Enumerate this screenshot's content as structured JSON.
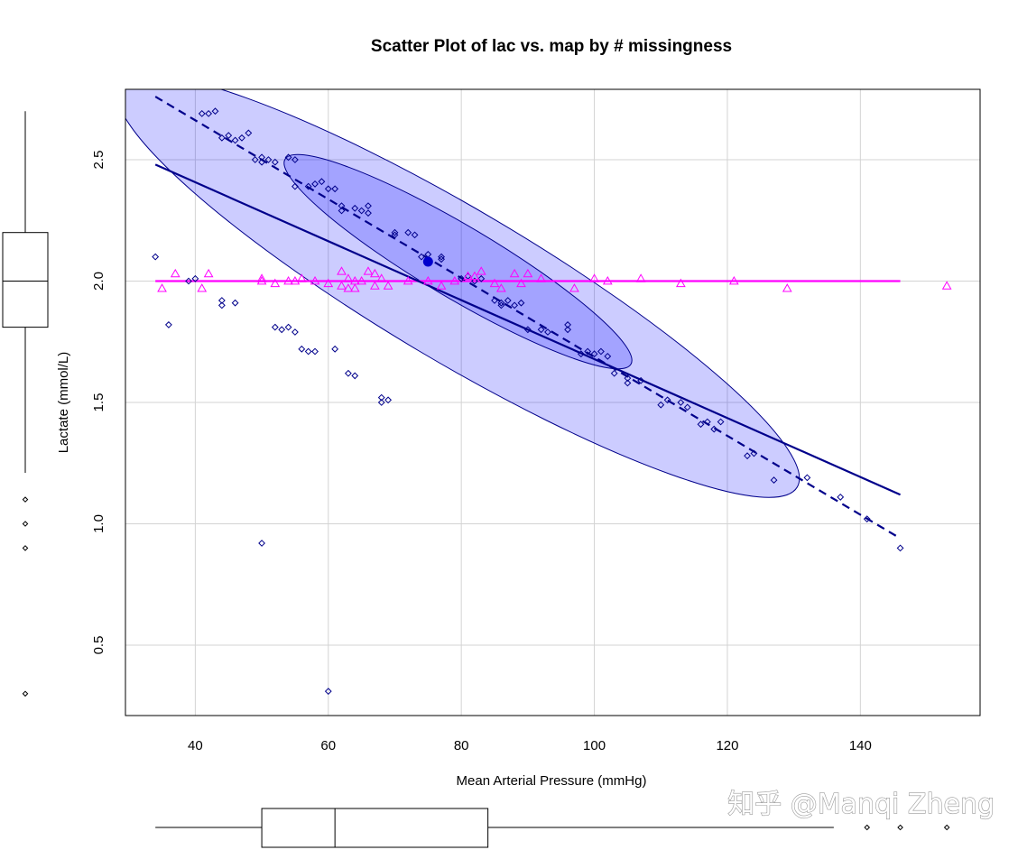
{
  "chart_data": {
    "type": "scatter",
    "title": "Scatter Plot of lac vs. map by # missingness",
    "xlabel": "Mean Arterial Pressure (mmHg)",
    "ylabel": "Lactate (mmol/L)",
    "xlim": [
      29.5,
      158
    ],
    "ylim": [
      0.21,
      2.79
    ],
    "x_ticks": [
      40,
      60,
      80,
      100,
      120,
      140
    ],
    "y_ticks": [
      0.5,
      1.0,
      1.5,
      2.0,
      2.5
    ],
    "x_tick_labels": [
      "40",
      "60",
      "80",
      "100",
      "120",
      "140"
    ],
    "y_tick_labels": [
      "0.5",
      "1.0",
      "1.5",
      "2.0",
      "2.5"
    ],
    "grid": true,
    "colors": {
      "observed": "#00008B",
      "missing": "#FF00FF",
      "ellipse_fill": "rgba(0,0,255,0.2)",
      "ellipse_stroke": "#00008B",
      "grid": "#d3d3d3"
    },
    "series": [
      {
        "marker": "diamond",
        "color": "#00008B",
        "points": [
          [
            34,
            2.1
          ],
          [
            36,
            1.82
          ],
          [
            39,
            2.0
          ],
          [
            40,
            2.01
          ],
          [
            42,
            2.69
          ],
          [
            43,
            2.7
          ],
          [
            41,
            2.69
          ],
          [
            44,
            1.92
          ],
          [
            44,
            1.9
          ],
          [
            46,
            1.91
          ],
          [
            44,
            2.59
          ],
          [
            45,
            2.6
          ],
          [
            46,
            2.58
          ],
          [
            47,
            2.59
          ],
          [
            48,
            2.61
          ],
          [
            49,
            2.5
          ],
          [
            50,
            2.51
          ],
          [
            50,
            2.49
          ],
          [
            51,
            2.5
          ],
          [
            52,
            2.49
          ],
          [
            54,
            2.51
          ],
          [
            55,
            2.5
          ],
          [
            55,
            2.39
          ],
          [
            57,
            2.39
          ],
          [
            58,
            2.4
          ],
          [
            59,
            2.41
          ],
          [
            60,
            2.38
          ],
          [
            61,
            2.38
          ],
          [
            62,
            2.29
          ],
          [
            62,
            2.31
          ],
          [
            64,
            2.3
          ],
          [
            65,
            2.29
          ],
          [
            66,
            2.31
          ],
          [
            66,
            2.28
          ],
          [
            70,
            2.2
          ],
          [
            70,
            2.19
          ],
          [
            72,
            2.2
          ],
          [
            73,
            2.19
          ],
          [
            74,
            2.1
          ],
          [
            75,
            2.11
          ],
          [
            77,
            2.1
          ],
          [
            77,
            2.09
          ],
          [
            80,
            2.01
          ],
          [
            81,
            2.02
          ],
          [
            82,
            2.0
          ],
          [
            83,
            2.01
          ],
          [
            85,
            1.92
          ],
          [
            86,
            1.9
          ],
          [
            86,
            1.91
          ],
          [
            87,
            1.92
          ],
          [
            88,
            1.9
          ],
          [
            89,
            1.91
          ],
          [
            90,
            1.8
          ],
          [
            92,
            1.8
          ],
          [
            93,
            1.79
          ],
          [
            96,
            1.82
          ],
          [
            96,
            1.8
          ],
          [
            98,
            1.7
          ],
          [
            99,
            1.71
          ],
          [
            100,
            1.7
          ],
          [
            101,
            1.71
          ],
          [
            102,
            1.69
          ],
          [
            103,
            1.62
          ],
          [
            105,
            1.6
          ],
          [
            105,
            1.58
          ],
          [
            107,
            1.59
          ],
          [
            110,
            1.49
          ],
          [
            111,
            1.51
          ],
          [
            113,
            1.5
          ],
          [
            114,
            1.48
          ],
          [
            116,
            1.41
          ],
          [
            117,
            1.42
          ],
          [
            118,
            1.39
          ],
          [
            119,
            1.42
          ],
          [
            123,
            1.28
          ],
          [
            124,
            1.29
          ],
          [
            127,
            1.18
          ],
          [
            132,
            1.19
          ],
          [
            137,
            1.11
          ],
          [
            141,
            1.02
          ],
          [
            146,
            0.9
          ],
          [
            52,
            1.81
          ],
          [
            53,
            1.8
          ],
          [
            54,
            1.81
          ],
          [
            55,
            1.79
          ],
          [
            56,
            1.72
          ],
          [
            57,
            1.71
          ],
          [
            58,
            1.71
          ],
          [
            61,
            1.72
          ],
          [
            63,
            1.62
          ],
          [
            64,
            1.61
          ],
          [
            68,
            1.5
          ],
          [
            68,
            1.52
          ],
          [
            69,
            1.51
          ],
          [
            50,
            0.92
          ],
          [
            60,
            0.31
          ]
        ]
      },
      {
        "marker": "triangle",
        "color": "#FF00FF",
        "points": [
          [
            35,
            1.97
          ],
          [
            37,
            2.03
          ],
          [
            41,
            1.97
          ],
          [
            42,
            2.03
          ],
          [
            50,
            2.01
          ],
          [
            50,
            2.0
          ],
          [
            52,
            1.99
          ],
          [
            54,
            2.0
          ],
          [
            55,
            2.0
          ],
          [
            56,
            2.01
          ],
          [
            58,
            2.0
          ],
          [
            60,
            1.99
          ],
          [
            62,
            2.04
          ],
          [
            62,
            1.98
          ],
          [
            63,
            2.01
          ],
          [
            63,
            1.97
          ],
          [
            64,
            2.0
          ],
          [
            64,
            1.97
          ],
          [
            65,
            2.0
          ],
          [
            66,
            2.04
          ],
          [
            67,
            1.98
          ],
          [
            67,
            2.03
          ],
          [
            68,
            2.01
          ],
          [
            69,
            1.98
          ],
          [
            72,
            2.0
          ],
          [
            75,
            2.0
          ],
          [
            77,
            1.98
          ],
          [
            79,
            2.0
          ],
          [
            81,
            2.02
          ],
          [
            82,
            2.02
          ],
          [
            83,
            2.04
          ],
          [
            85,
            1.99
          ],
          [
            86,
            1.97
          ],
          [
            88,
            2.03
          ],
          [
            89,
            1.99
          ],
          [
            90,
            2.03
          ],
          [
            92,
            2.01
          ],
          [
            97,
            1.97
          ],
          [
            100,
            2.01
          ],
          [
            102,
            2.0
          ],
          [
            107,
            2.01
          ],
          [
            113,
            1.99
          ],
          [
            121,
            2.0
          ],
          [
            129,
            1.97
          ],
          [
            153,
            1.98
          ]
        ]
      }
    ],
    "lines": [
      {
        "name_on_chart": "",
        "style": "solid",
        "color": "#FF00FF",
        "from": [
          34,
          2.0
        ],
        "to": [
          146,
          2.0
        ]
      },
      {
        "style": "solid",
        "color": "#00008B",
        "from": [
          34,
          2.48
        ],
        "to": [
          146,
          1.12
        ]
      },
      {
        "style": "dashed",
        "color": "#00008B",
        "from": [
          34,
          2.76
        ],
        "to": [
          146,
          0.94
        ]
      }
    ],
    "centroid": {
      "x": 75,
      "y": 2.08,
      "color": "#0000CD"
    },
    "ellipses": [
      {
        "level": "outer",
        "center": [
          79.5,
          1.98
        ],
        "x_halfrange": 51,
        "y_halfrange": 0.79
      },
      {
        "level": "inner",
        "center": [
          79.5,
          2.08
        ],
        "x_halfrange": 26,
        "y_halfrange": 0.41
      }
    ],
    "marginal_boxplots": {
      "x": {
        "whisker_low": 34,
        "q1": 50,
        "median": 61,
        "q3": 84,
        "whisker_high": 136,
        "outliers": [
          141,
          146,
          153
        ]
      },
      "y": {
        "whisker_low": 1.21,
        "q1": 1.81,
        "median": 2.0,
        "q3": 2.2,
        "whisker_high": 2.7,
        "outliers": [
          1.1,
          1.0,
          0.9,
          0.3
        ]
      }
    }
  },
  "watermark": "知乎 @Manqi Zheng"
}
